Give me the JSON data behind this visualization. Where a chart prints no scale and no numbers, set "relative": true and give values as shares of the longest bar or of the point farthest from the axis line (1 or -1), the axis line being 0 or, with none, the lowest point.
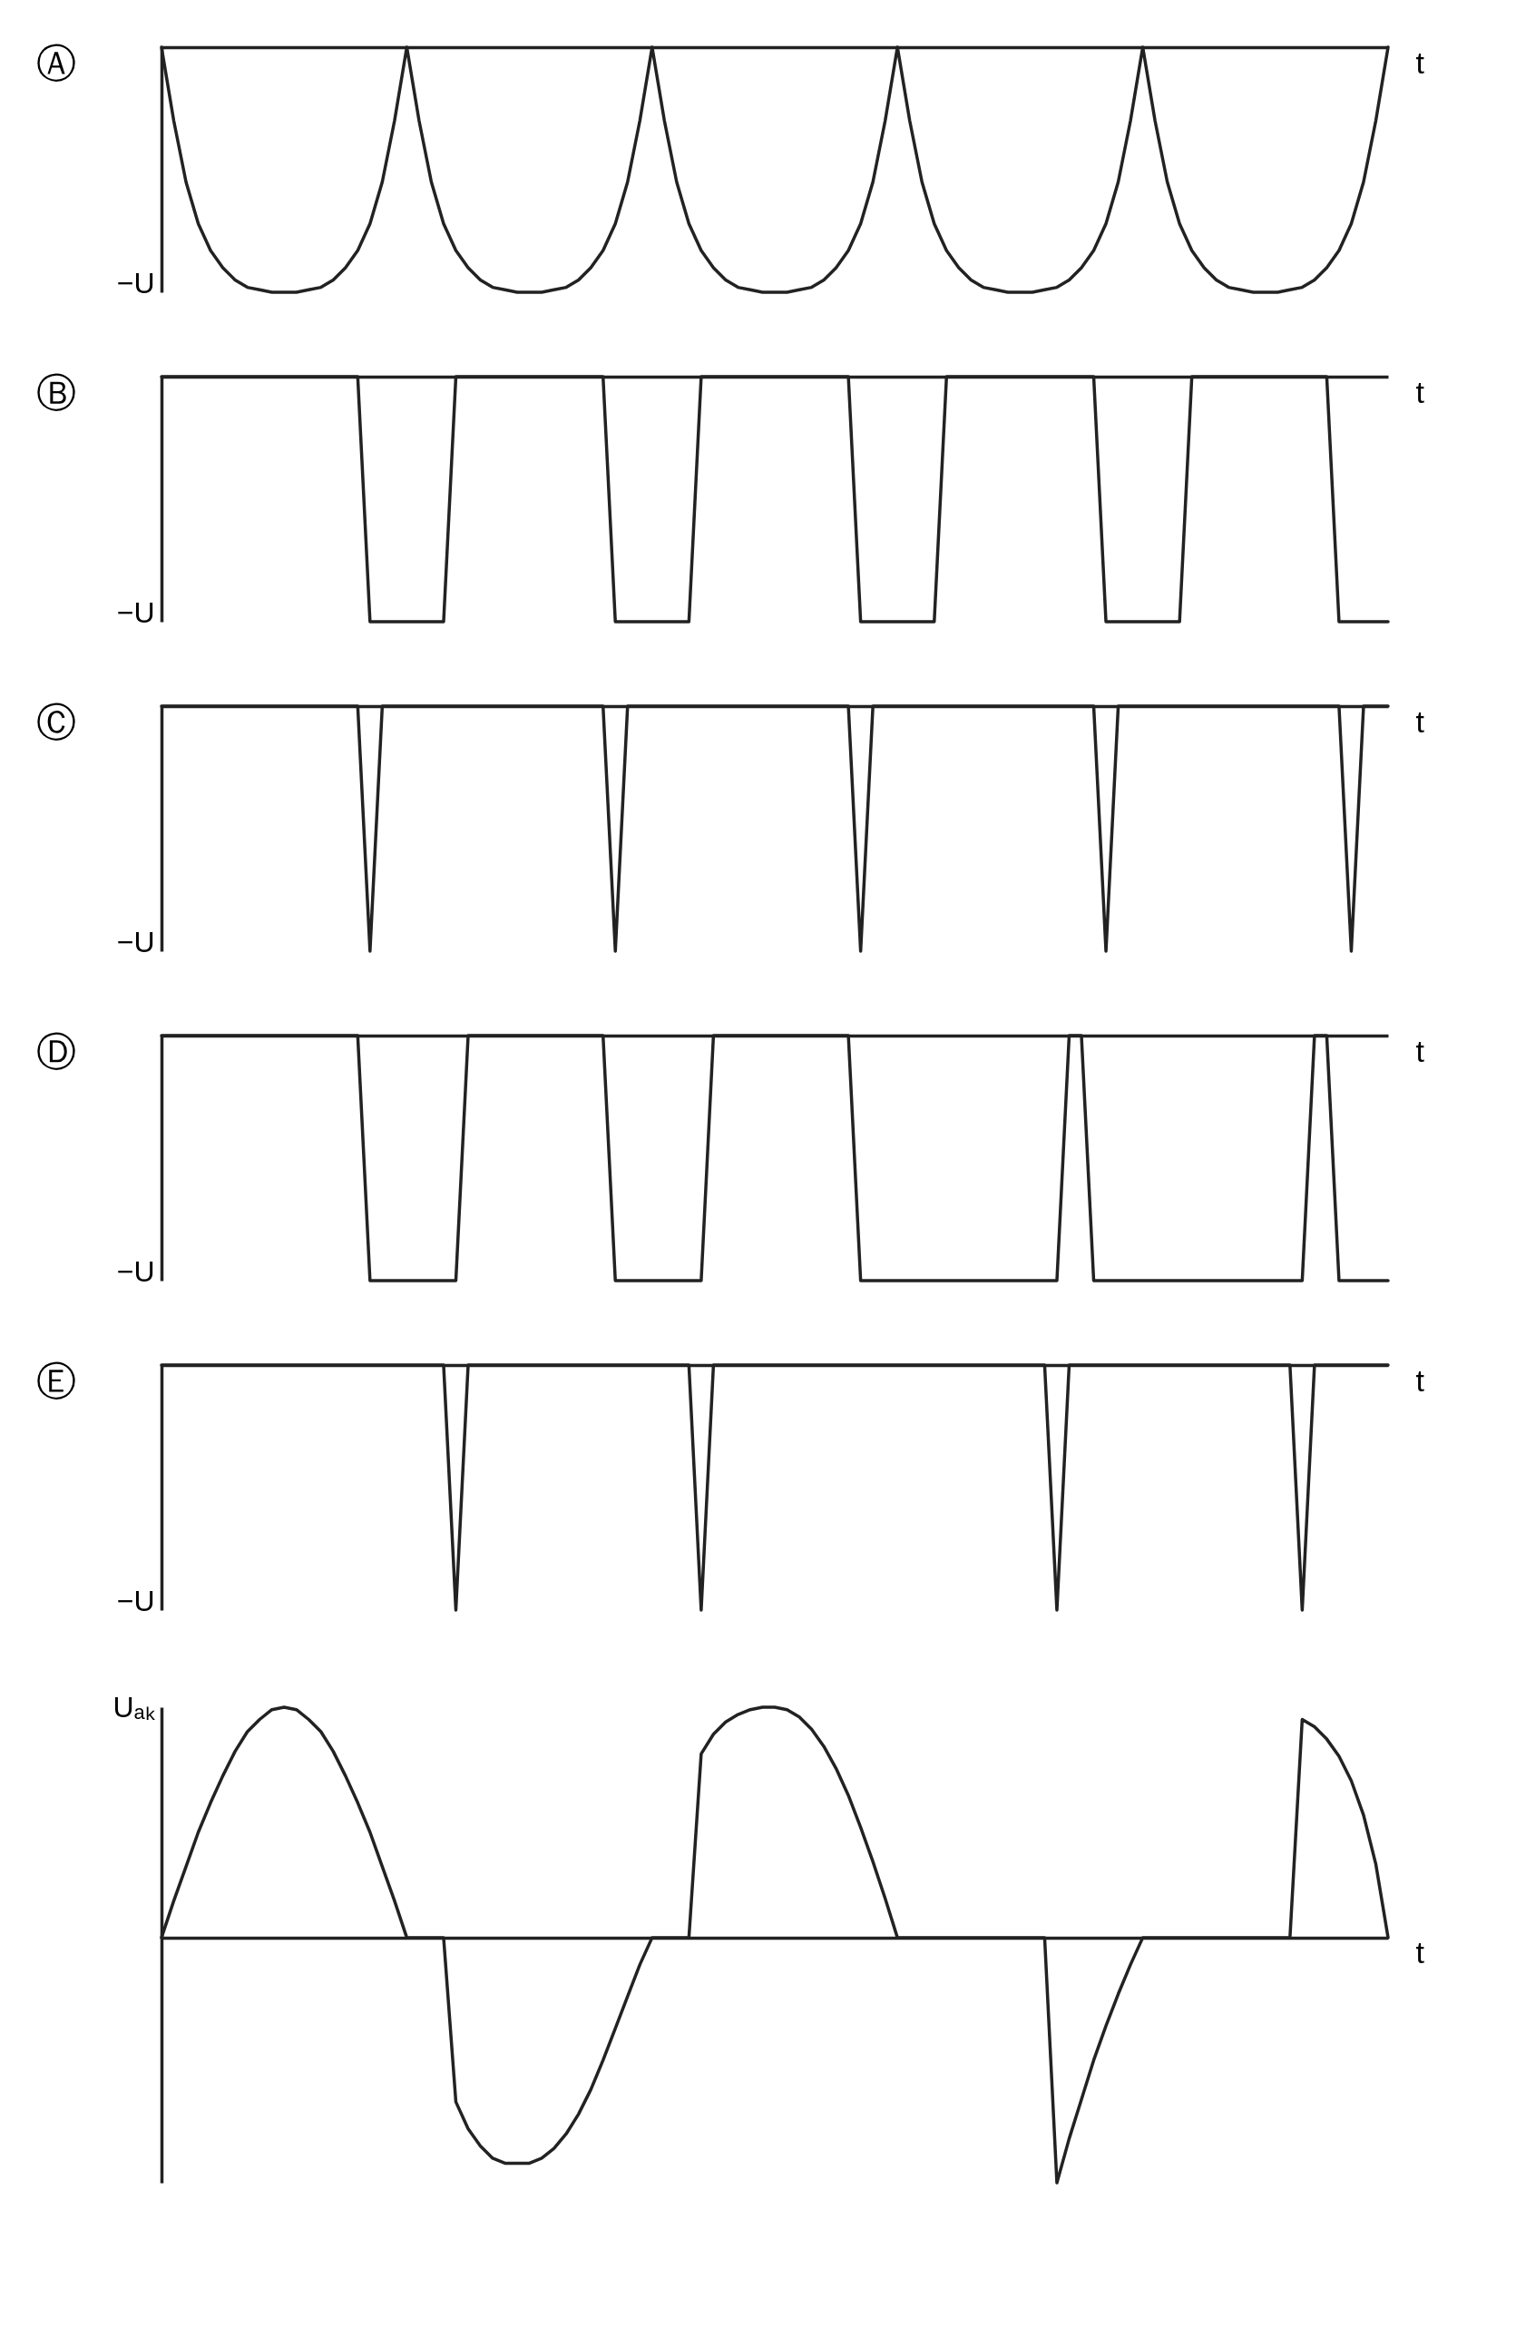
{
  "chart_data": [
    {
      "type": "line",
      "title": "Ⓐ",
      "xlabel": "t",
      "ylabel": "−U",
      "relative": true,
      "color": "#222222",
      "categories": [
        null,
        null,
        null,
        null,
        null,
        null,
        null,
        null,
        null,
        null,
        null,
        null,
        null,
        null,
        null,
        null,
        null,
        null,
        null,
        null,
        null,
        null,
        null,
        null,
        null,
        null,
        null,
        null,
        null,
        null,
        null,
        null,
        null,
        null,
        null,
        null,
        null,
        null,
        null,
        null,
        null,
        null,
        null,
        null,
        null,
        null,
        null,
        null,
        null,
        null,
        null,
        null,
        null,
        null,
        null,
        null,
        null,
        null,
        null,
        null,
        null,
        null,
        null,
        null,
        null,
        null,
        null,
        null,
        null,
        null,
        null,
        null,
        null,
        null,
        null,
        null,
        null,
        null,
        null,
        null,
        null,
        null,
        null,
        null,
        null,
        null,
        null,
        null,
        null,
        null,
        null,
        null,
        null,
        null,
        null,
        null,
        null,
        null,
        null,
        null,
        null
      ],
      "values": [
        0,
        -0.3,
        -0.55,
        -0.72,
        -0.83,
        -0.9,
        -0.95,
        -0.98,
        -0.99,
        -1,
        -1,
        -1,
        -0.99,
        -0.98,
        -0.95,
        -0.9,
        -0.83,
        -0.72,
        -0.55,
        -0.3,
        0,
        -0.3,
        -0.55,
        -0.72,
        -0.83,
        -0.9,
        -0.95,
        -0.98,
        -0.99,
        -1,
        -1,
        -1,
        -0.99,
        -0.98,
        -0.95,
        -0.9,
        -0.83,
        -0.72,
        -0.55,
        -0.3,
        0,
        -0.3,
        -0.55,
        -0.72,
        -0.83,
        -0.9,
        -0.95,
        -0.98,
        -0.99,
        -1,
        -1,
        -1,
        -0.99,
        -0.98,
        -0.95,
        -0.9,
        -0.83,
        -0.72,
        -0.55,
        -0.3,
        0,
        -0.3,
        -0.55,
        -0.72,
        -0.83,
        -0.9,
        -0.95,
        -0.98,
        -0.99,
        -1,
        -1,
        -1,
        -0.99,
        -0.98,
        -0.95,
        -0.9,
        -0.83,
        -0.72,
        -0.55,
        -0.3,
        0,
        -0.3,
        -0.55,
        -0.72,
        -0.83,
        -0.9,
        -0.95,
        -0.98,
        -0.99,
        -1,
        -1,
        -1,
        -0.99,
        -0.98,
        -0.95,
        -0.9,
        -0.83,
        -0.72,
        -0.55,
        -0.3,
        0
      ]
    },
    {
      "type": "line",
      "title": "Ⓑ",
      "xlabel": "t",
      "ylabel": "−U",
      "relative": true,
      "color": "#222222",
      "categories": [
        null,
        null,
        null,
        null,
        null,
        null,
        null,
        null,
        null,
        null,
        null,
        null,
        null,
        null,
        null,
        null,
        null,
        null,
        null,
        null,
        null,
        null,
        null,
        null,
        null,
        null,
        null,
        null,
        null,
        null,
        null,
        null,
        null,
        null,
        null,
        null,
        null,
        null,
        null,
        null,
        null,
        null,
        null,
        null,
        null,
        null,
        null,
        null,
        null,
        null,
        null,
        null,
        null,
        null,
        null,
        null,
        null,
        null,
        null,
        null,
        null,
        null,
        null,
        null,
        null,
        null,
        null,
        null,
        null,
        null,
        null,
        null,
        null,
        null,
        null,
        null,
        null,
        null,
        null,
        null,
        null,
        null,
        null,
        null,
        null,
        null,
        null,
        null,
        null,
        null,
        null,
        null,
        null,
        null,
        null,
        null,
        null,
        null,
        null,
        null,
        null
      ],
      "values": [
        0,
        0,
        0,
        0,
        0,
        0,
        0,
        0,
        0,
        0,
        0,
        0,
        0,
        0,
        0,
        0,
        0,
        -1,
        -1,
        -1,
        -1,
        -1,
        -1,
        -1,
        0,
        0,
        0,
        0,
        0,
        0,
        0,
        0,
        0,
        0,
        0,
        0,
        0,
        -1,
        -1,
        -1,
        -1,
        -1,
        -1,
        -1,
        0,
        0,
        0,
        0,
        0,
        0,
        0,
        0,
        0,
        0,
        0,
        0,
        0,
        -1,
        -1,
        -1,
        -1,
        -1,
        -1,
        -1,
        0,
        0,
        0,
        0,
        0,
        0,
        0,
        0,
        0,
        0,
        0,
        0,
        0,
        -1,
        -1,
        -1,
        -1,
        -1,
        -1,
        -1,
        0,
        0,
        0,
        0,
        0,
        0,
        0,
        0,
        0,
        0,
        0,
        0,
        -1,
        -1,
        -1,
        -1,
        -1
      ]
    },
    {
      "type": "line",
      "title": "Ⓒ",
      "xlabel": "t",
      "ylabel": "−U",
      "relative": true,
      "color": "#222222",
      "categories": [
        null,
        null,
        null,
        null,
        null,
        null,
        null,
        null,
        null,
        null,
        null,
        null,
        null,
        null,
        null,
        null,
        null,
        null,
        null,
        null,
        null,
        null,
        null,
        null,
        null,
        null,
        null,
        null,
        null,
        null,
        null,
        null,
        null,
        null,
        null,
        null,
        null,
        null,
        null,
        null,
        null,
        null,
        null,
        null,
        null,
        null,
        null,
        null,
        null,
        null,
        null,
        null,
        null,
        null,
        null,
        null,
        null,
        null,
        null,
        null,
        null,
        null,
        null,
        null,
        null,
        null,
        null,
        null,
        null,
        null,
        null,
        null,
        null,
        null,
        null,
        null,
        null,
        null,
        null,
        null,
        null,
        null,
        null,
        null,
        null,
        null,
        null,
        null,
        null,
        null,
        null,
        null,
        null,
        null,
        null,
        null,
        null,
        null,
        null,
        null,
        null
      ],
      "values": [
        0,
        0,
        0,
        0,
        0,
        0,
        0,
        0,
        0,
        0,
        0,
        0,
        0,
        0,
        0,
        0,
        0,
        -1,
        0,
        0,
        0,
        0,
        0,
        0,
        0,
        0,
        0,
        0,
        0,
        0,
        0,
        0,
        0,
        0,
        0,
        0,
        0,
        -1,
        0,
        0,
        0,
        0,
        0,
        0,
        0,
        0,
        0,
        0,
        0,
        0,
        0,
        0,
        0,
        0,
        0,
        0,
        0,
        -1,
        0,
        0,
        0,
        0,
        0,
        0,
        0,
        0,
        0,
        0,
        0,
        0,
        0,
        0,
        0,
        0,
        0,
        0,
        0,
        -1,
        0,
        0,
        0,
        0,
        0,
        0,
        0,
        0,
        0,
        0,
        0,
        0,
        0,
        0,
        0,
        0,
        0,
        0,
        0,
        -1,
        0,
        0,
        0
      ]
    },
    {
      "type": "line",
      "title": "Ⓓ",
      "xlabel": "t",
      "ylabel": "−U",
      "relative": true,
      "color": "#222222",
      "categories": [
        null,
        null,
        null,
        null,
        null,
        null,
        null,
        null,
        null,
        null,
        null,
        null,
        null,
        null,
        null,
        null,
        null,
        null,
        null,
        null,
        null,
        null,
        null,
        null,
        null,
        null,
        null,
        null,
        null,
        null,
        null,
        null,
        null,
        null,
        null,
        null,
        null,
        null,
        null,
        null,
        null,
        null,
        null,
        null,
        null,
        null,
        null,
        null,
        null,
        null,
        null,
        null,
        null,
        null,
        null,
        null,
        null,
        null,
        null,
        null,
        null,
        null,
        null,
        null,
        null,
        null,
        null,
        null,
        null,
        null,
        null,
        null,
        null,
        null,
        null,
        null,
        null,
        null,
        null,
        null,
        null,
        null,
        null,
        null,
        null,
        null,
        null,
        null,
        null,
        null,
        null,
        null,
        null,
        null,
        null,
        null,
        null,
        null,
        null,
        null,
        null
      ],
      "values": [
        0,
        0,
        0,
        0,
        0,
        0,
        0,
        0,
        0,
        0,
        0,
        0,
        0,
        0,
        0,
        0,
        0,
        -1,
        -1,
        -1,
        -1,
        -1,
        -1,
        -1,
        -1,
        0,
        0,
        0,
        0,
        0,
        0,
        0,
        0,
        0,
        0,
        0,
        0,
        -1,
        -1,
        -1,
        -1,
        -1,
        -1,
        -1,
        -1,
        0,
        0,
        0,
        0,
        0,
        0,
        0,
        0,
        0,
        0,
        0,
        0,
        -1,
        -1,
        -1,
        -1,
        -1,
        -1,
        -1,
        -1,
        -1,
        -1,
        -1,
        -1,
        -1,
        -1,
        -1,
        -1,
        -1,
        0,
        0,
        -1,
        -1,
        -1,
        -1,
        -1,
        -1,
        -1,
        -1,
        -1,
        -1,
        -1,
        -1,
        -1,
        -1,
        -1,
        -1,
        -1,
        -1,
        0,
        0,
        -1,
        -1,
        -1,
        -1,
        -1
      ]
    },
    {
      "type": "line",
      "title": "Ⓔ",
      "xlabel": "t",
      "ylabel": "−U",
      "relative": true,
      "color": "#222222",
      "categories": [
        null,
        null,
        null,
        null,
        null,
        null,
        null,
        null,
        null,
        null,
        null,
        null,
        null,
        null,
        null,
        null,
        null,
        null,
        null,
        null,
        null,
        null,
        null,
        null,
        null,
        null,
        null,
        null,
        null,
        null,
        null,
        null,
        null,
        null,
        null,
        null,
        null,
        null,
        null,
        null,
        null,
        null,
        null,
        null,
        null,
        null,
        null,
        null,
        null,
        null,
        null,
        null,
        null,
        null,
        null,
        null,
        null,
        null,
        null,
        null,
        null,
        null,
        null,
        null,
        null,
        null,
        null,
        null,
        null,
        null,
        null,
        null,
        null,
        null,
        null,
        null,
        null,
        null,
        null,
        null,
        null,
        null,
        null,
        null,
        null,
        null,
        null,
        null,
        null,
        null,
        null,
        null,
        null,
        null,
        null,
        null,
        null,
        null,
        null,
        null,
        null
      ],
      "values": [
        0,
        0,
        0,
        0,
        0,
        0,
        0,
        0,
        0,
        0,
        0,
        0,
        0,
        0,
        0,
        0,
        0,
        0,
        0,
        0,
        0,
        0,
        0,
        0,
        -1,
        0,
        0,
        0,
        0,
        0,
        0,
        0,
        0,
        0,
        0,
        0,
        0,
        0,
        0,
        0,
        0,
        0,
        0,
        0,
        -1,
        0,
        0,
        0,
        0,
        0,
        0,
        0,
        0,
        0,
        0,
        0,
        0,
        0,
        0,
        0,
        0,
        0,
        0,
        0,
        0,
        0,
        0,
        0,
        0,
        0,
        0,
        0,
        0,
        -1,
        0,
        0,
        0,
        0,
        0,
        0,
        0,
        0,
        0,
        0,
        0,
        0,
        0,
        0,
        0,
        0,
        0,
        0,
        0,
        -1,
        0,
        0,
        0,
        0,
        0,
        0,
        0
      ]
    },
    {
      "type": "line",
      "xlabel": "t",
      "ylabel": "Uₐₖ",
      "relative": true,
      "color": "#222222",
      "categories": [
        null,
        null,
        null,
        null,
        null,
        null,
        null,
        null,
        null,
        null,
        null,
        null,
        null,
        null,
        null,
        null,
        null,
        null,
        null,
        null,
        null,
        null,
        null,
        null,
        null,
        null,
        null,
        null,
        null,
        null,
        null,
        null,
        null,
        null,
        null,
        null,
        null,
        null,
        null,
        null,
        null,
        null,
        null,
        null,
        null,
        null,
        null,
        null,
        null,
        null,
        null,
        null,
        null,
        null,
        null,
        null,
        null,
        null,
        null,
        null,
        null,
        null,
        null,
        null,
        null,
        null,
        null,
        null,
        null,
        null,
        null,
        null,
        null,
        null,
        null,
        null,
        null,
        null,
        null,
        null,
        null,
        null,
        null,
        null,
        null,
        null,
        null,
        null,
        null,
        null,
        null,
        null,
        null,
        null,
        null,
        null,
        null,
        null,
        null,
        null,
        null
      ],
      "values": [
        0,
        0.15,
        0.29,
        0.43,
        0.55,
        0.66,
        0.76,
        0.84,
        0.89,
        0.93,
        0.94,
        0.93,
        0.89,
        0.84,
        0.76,
        0.66,
        0.55,
        0.43,
        0.29,
        0.15,
        0,
        0,
        0,
        0,
        -0.67,
        -0.78,
        -0.85,
        -0.9,
        -0.92,
        -0.92,
        -0.92,
        -0.9,
        -0.86,
        -0.8,
        -0.72,
        -0.62,
        -0.5,
        -0.37,
        -0.24,
        -0.11,
        0,
        0,
        0,
        0,
        0.75,
        0.83,
        0.88,
        0.91,
        0.93,
        0.94,
        0.94,
        0.93,
        0.9,
        0.85,
        0.78,
        0.69,
        0.58,
        0.45,
        0.31,
        0.16,
        0,
        0,
        0,
        0,
        0,
        0,
        0,
        0,
        0,
        0,
        0,
        0,
        0,
        -1,
        -0.82,
        -0.66,
        -0.5,
        -0.36,
        -0.23,
        -0.11,
        0,
        0,
        0,
        0,
        0,
        0,
        0,
        0,
        0,
        0,
        0,
        0,
        0,
        0.89,
        0.86,
        0.81,
        0.74,
        0.64,
        0.5,
        0.3,
        0
      ]
    }
  ]
}
